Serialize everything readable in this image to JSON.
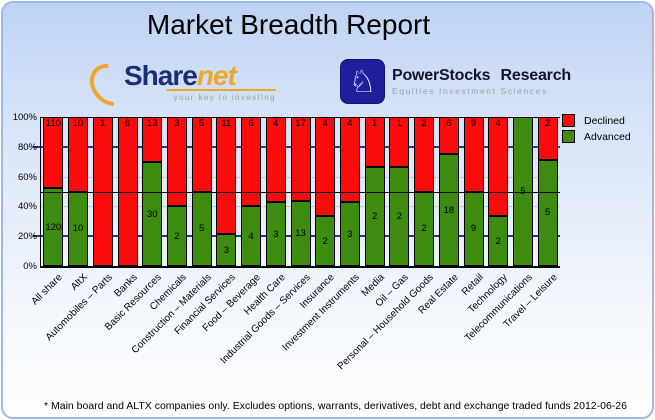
{
  "title": "Market Breadth Report",
  "logos": {
    "sharenet": {
      "name_part1": "Share",
      "name_part2": "net",
      "tagline": "your key to investing"
    },
    "powerstocks": {
      "icon": "chess-knight",
      "icon_glyph": "♘",
      "name": "PowerStocks Research",
      "subtitle": "Equities Investment Sciences"
    }
  },
  "chart_data": {
    "type": "bar",
    "stacked": true,
    "normalized_to_100_percent": true,
    "title": "",
    "xlabel": "",
    "ylabel": "",
    "ylim": [
      0,
      100
    ],
    "y_ticks": [
      "0%",
      "20%",
      "40%",
      "60%",
      "80%",
      "100%"
    ],
    "legend_position": "top-right",
    "gridlines": {
      "navy_at": [
        20,
        80
      ],
      "gray_at": [
        40,
        60
      ],
      "black_at": [
        50
      ]
    },
    "categories": [
      "All share",
      "AltX",
      "Automobiles – Parts",
      "Banks",
      "Basic Resources",
      "Chemicals",
      "Construction – Materials",
      "Financial Services",
      "Food – Beverage",
      "Health Care",
      "Industrial Goods – Services",
      "Insurance",
      "Investment Instruments",
      "Media",
      "Oil – Gas",
      "Personal – Household Goods",
      "Real Estate",
      "Retail",
      "Technology",
      "Telecommunications",
      "Travel – Leisure"
    ],
    "series": [
      {
        "name": "Declined",
        "color": "#fa0c0c",
        "values": [
          110,
          10,
          1,
          6,
          13,
          3,
          5,
          11,
          6,
          4,
          17,
          4,
          4,
          1,
          1,
          2,
          6,
          9,
          4,
          0,
          2
        ]
      },
      {
        "name": "Advanced",
        "color": "#3d8c10",
        "values": [
          120,
          10,
          0,
          0,
          30,
          2,
          5,
          3,
          4,
          3,
          13,
          2,
          3,
          2,
          2,
          2,
          18,
          9,
          2,
          5,
          5
        ]
      }
    ]
  },
  "legend": {
    "items": [
      {
        "label": "Declined",
        "color": "#fa0c0c"
      },
      {
        "label": "Advanced",
        "color": "#3d8c10"
      }
    ]
  },
  "footer": {
    "note": "* Main board and ALTX companies only. Excludes options, warrants, derivatives, debt and exchange traded funds",
    "date": "2012-06-26"
  }
}
